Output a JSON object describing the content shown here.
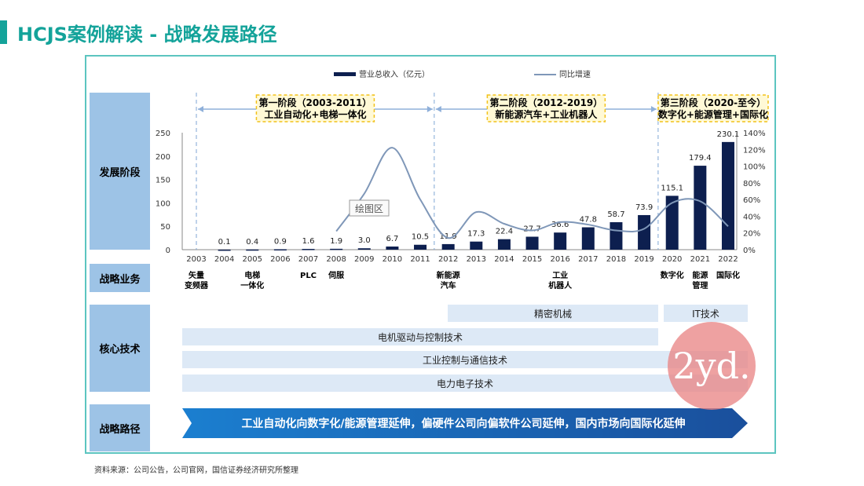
{
  "title": "HCJS案例解读 - 战略发展路径",
  "rows": {
    "stage": "发展阶段",
    "business": "战略业务",
    "tech": "核心技术",
    "path": "战略路径"
  },
  "phases": [
    {
      "line1": "第一阶段（2003-2011）",
      "line2": "工业自动化+电梯一体化"
    },
    {
      "line1": "第二阶段（2012-2019）",
      "line2": "新能源汽车+工业机器人"
    },
    {
      "line1": "第三阶段（2020-至今）",
      "line2": "数字化+能源管理+国际化"
    }
  ],
  "businesses": [
    {
      "year": "2003",
      "l1": "矢量",
      "l2": "变频器"
    },
    {
      "year": "2005",
      "l1": "电梯",
      "l2": "一体化"
    },
    {
      "year": "2007",
      "l1": "PLC",
      "l2": ""
    },
    {
      "year": "2008",
      "l1": "伺服",
      "l2": ""
    },
    {
      "year": "2012",
      "l1": "新能源",
      "l2": "汽车"
    },
    {
      "year": "2016",
      "l1": "工业",
      "l2": "机器人"
    },
    {
      "year": "2020",
      "l1": "数字化",
      "l2": ""
    },
    {
      "year": "2021",
      "l1": "能源",
      "l2": "管理"
    },
    {
      "year": "2022",
      "l1": "国际化",
      "l2": ""
    }
  ],
  "tech": [
    "精密机械",
    "IT技术",
    "电机驱动与控制技术",
    "工业控制与通信技术",
    "电力电子技术"
  ],
  "path_text": "工业自动化向数字化/能源管理延伸，偏硬件公司向偏软件公司延伸，国内市场向国际化延伸",
  "source": "资料来源：公司公告，公司官网，国信证券经济研究所整理",
  "watermark": "2yd.",
  "plot_label": "绘图区",
  "colors": {
    "accent": "#14a39a",
    "bar": "#0d1f4f",
    "line": "#7f97b8",
    "cat": "#9dc3e6"
  },
  "chart_data": {
    "type": "bar",
    "categories": [
      "2003",
      "2004",
      "2005",
      "2006",
      "2007",
      "2008",
      "2009",
      "2010",
      "2011",
      "2012",
      "2013",
      "2014",
      "2015",
      "2016",
      "2017",
      "2018",
      "2019",
      "2020",
      "2021",
      "2022"
    ],
    "series": [
      {
        "name": "营业总收入（亿元）",
        "type": "bar",
        "values": [
          null,
          0.1,
          0.4,
          0.9,
          1.6,
          1.9,
          3.0,
          6.7,
          10.5,
          11.9,
          17.3,
          22.4,
          27.7,
          36.6,
          47.8,
          58.7,
          73.9,
          115.1,
          179.4,
          230.1
        ],
        "labels": [
          "",
          "0.1",
          "0.4",
          "0.9",
          "1.6",
          "1.9",
          "3.0",
          "6.7",
          "10.5",
          "11.9",
          "17.3",
          "22.4",
          "27.7",
          "36.6",
          "47.8",
          "58.7",
          "73.9",
          "115.1",
          "179.4",
          "230.1"
        ]
      },
      {
        "name": "同比增速",
        "type": "line",
        "axis": "right",
        "values": [
          null,
          null,
          null,
          null,
          null,
          22,
          67,
          122,
          60,
          14,
          45,
          31,
          23,
          33,
          30,
          23,
          25,
          56,
          58,
          28
        ]
      }
    ],
    "yleft": {
      "ticks": [
        "0",
        "50",
        "100",
        "150",
        "200",
        "250"
      ],
      "range": [
        0,
        250
      ]
    },
    "yright": {
      "ticks": [
        "0%",
        "20%",
        "40%",
        "60%",
        "80%",
        "100%",
        "120%",
        "140%"
      ],
      "range": [
        0,
        140
      ]
    },
    "legend": "top-center"
  }
}
